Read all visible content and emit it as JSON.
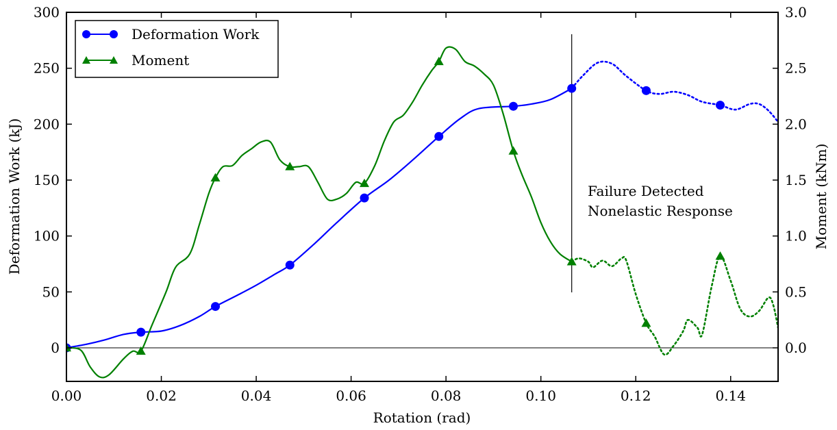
{
  "chart_data": {
    "type": "line",
    "xlabel": "Rotation (rad)",
    "ylabel_left": "Deformation Work (kJ)",
    "ylabel_right": "Moment (kNm)",
    "xlim": [
      0.0,
      0.15
    ],
    "ylim_left": [
      -30,
      300
    ],
    "ylim_right": [
      -0.3,
      3.0
    ],
    "x_ticks": [
      0.0,
      0.02,
      0.04,
      0.06,
      0.08,
      0.1,
      0.12,
      0.14
    ],
    "x_tick_labels": [
      "0.00",
      "0.02",
      "0.04",
      "0.06",
      "0.08",
      "0.10",
      "0.12",
      "0.14"
    ],
    "y_left_ticks": [
      0,
      50,
      100,
      150,
      200,
      250,
      300
    ],
    "y_left_tick_labels": [
      "0",
      "50",
      "100",
      "150",
      "200",
      "250",
      "300"
    ],
    "y_right_ticks": [
      0.0,
      0.5,
      1.0,
      1.5,
      2.0,
      2.5,
      3.0
    ],
    "y_right_tick_labels": [
      "0.0",
      "0.5",
      "1.0",
      "1.5",
      "2.0",
      "2.5",
      "3.0"
    ],
    "grid": false,
    "legend_position": "top-left",
    "failure_x": 0.1065,
    "annotation_lines": [
      "Failure Detected",
      "Nonelastic Response"
    ],
    "series": [
      {
        "name": "Deformation Work",
        "axis": "left",
        "color": "#0000ff",
        "marker": "circle",
        "markers": [
          [
            0.0,
            0
          ],
          [
            0.0157,
            14
          ],
          [
            0.0314,
            37
          ],
          [
            0.0471,
            74
          ],
          [
            0.0628,
            134
          ],
          [
            0.0785,
            189
          ],
          [
            0.0942,
            216
          ],
          [
            0.1065,
            232
          ],
          [
            0.1222,
            230
          ],
          [
            0.1378,
            217
          ]
        ],
        "curve_solid": [
          [
            0.0,
            0
          ],
          [
            0.004,
            3
          ],
          [
            0.008,
            7
          ],
          [
            0.012,
            12
          ],
          [
            0.0157,
            14
          ],
          [
            0.02,
            15
          ],
          [
            0.024,
            20
          ],
          [
            0.028,
            28
          ],
          [
            0.0314,
            37
          ],
          [
            0.036,
            47
          ],
          [
            0.04,
            56
          ],
          [
            0.044,
            66
          ],
          [
            0.0471,
            74
          ],
          [
            0.052,
            92
          ],
          [
            0.057,
            112
          ],
          [
            0.0628,
            134
          ],
          [
            0.068,
            150
          ],
          [
            0.073,
            168
          ],
          [
            0.0785,
            189
          ],
          [
            0.083,
            205
          ],
          [
            0.087,
            214
          ],
          [
            0.0942,
            216
          ],
          [
            0.098,
            218
          ],
          [
            0.102,
            222
          ],
          [
            0.1065,
            232
          ]
        ],
        "curve_dotted": [
          [
            0.1065,
            232
          ],
          [
            0.109,
            244
          ],
          [
            0.112,
            255
          ],
          [
            0.115,
            254
          ],
          [
            0.118,
            243
          ],
          [
            0.1222,
            230
          ],
          [
            0.125,
            227
          ],
          [
            0.128,
            229
          ],
          [
            0.131,
            226
          ],
          [
            0.134,
            220
          ],
          [
            0.1378,
            217
          ],
          [
            0.141,
            213
          ],
          [
            0.144,
            218
          ],
          [
            0.146,
            218
          ],
          [
            0.148,
            212
          ],
          [
            0.15,
            202
          ]
        ]
      },
      {
        "name": "Moment",
        "axis": "right",
        "color": "#008000",
        "marker": "triangle",
        "markers": [
          [
            0.0,
            0.0
          ],
          [
            0.0157,
            -0.03
          ],
          [
            0.0314,
            1.52
          ],
          [
            0.0471,
            1.62
          ],
          [
            0.0628,
            1.47
          ],
          [
            0.0785,
            2.56
          ],
          [
            0.0942,
            1.76
          ],
          [
            0.1065,
            0.77
          ],
          [
            0.1222,
            0.22
          ],
          [
            0.1378,
            0.82
          ]
        ],
        "curve_solid": [
          [
            0.0,
            0.0
          ],
          [
            0.003,
            -0.02
          ],
          [
            0.005,
            -0.17
          ],
          [
            0.007,
            -0.26
          ],
          [
            0.009,
            -0.24
          ],
          [
            0.012,
            -0.1
          ],
          [
            0.014,
            -0.03
          ],
          [
            0.0157,
            -0.03
          ],
          [
            0.018,
            0.2
          ],
          [
            0.021,
            0.5
          ],
          [
            0.023,
            0.72
          ],
          [
            0.026,
            0.84
          ],
          [
            0.028,
            1.1
          ],
          [
            0.03,
            1.38
          ],
          [
            0.0314,
            1.52
          ],
          [
            0.033,
            1.62
          ],
          [
            0.035,
            1.63
          ],
          [
            0.037,
            1.72
          ],
          [
            0.039,
            1.78
          ],
          [
            0.041,
            1.84
          ],
          [
            0.043,
            1.84
          ],
          [
            0.045,
            1.68
          ],
          [
            0.0471,
            1.62
          ],
          [
            0.049,
            1.62
          ],
          [
            0.051,
            1.62
          ],
          [
            0.053,
            1.48
          ],
          [
            0.055,
            1.33
          ],
          [
            0.057,
            1.33
          ],
          [
            0.059,
            1.38
          ],
          [
            0.061,
            1.48
          ],
          [
            0.0628,
            1.47
          ],
          [
            0.065,
            1.63
          ],
          [
            0.067,
            1.85
          ],
          [
            0.069,
            2.02
          ],
          [
            0.071,
            2.08
          ],
          [
            0.073,
            2.2
          ],
          [
            0.075,
            2.35
          ],
          [
            0.077,
            2.48
          ],
          [
            0.0785,
            2.56
          ],
          [
            0.08,
            2.68
          ],
          [
            0.082,
            2.67
          ],
          [
            0.084,
            2.56
          ],
          [
            0.086,
            2.52
          ],
          [
            0.088,
            2.45
          ],
          [
            0.09,
            2.35
          ],
          [
            0.092,
            2.1
          ],
          [
            0.0942,
            1.76
          ],
          [
            0.096,
            1.55
          ],
          [
            0.098,
            1.35
          ],
          [
            0.1,
            1.12
          ],
          [
            0.102,
            0.95
          ],
          [
            0.104,
            0.84
          ],
          [
            0.1065,
            0.77
          ]
        ],
        "curve_dotted": [
          [
            0.1065,
            0.77
          ],
          [
            0.108,
            0.8
          ],
          [
            0.11,
            0.77
          ],
          [
            0.111,
            0.72
          ],
          [
            0.113,
            0.78
          ],
          [
            0.115,
            0.73
          ],
          [
            0.117,
            0.8
          ],
          [
            0.118,
            0.78
          ],
          [
            0.12,
            0.48
          ],
          [
            0.1222,
            0.22
          ],
          [
            0.124,
            0.1
          ],
          [
            0.126,
            -0.06
          ],
          [
            0.128,
            0.02
          ],
          [
            0.13,
            0.15
          ],
          [
            0.131,
            0.25
          ],
          [
            0.133,
            0.18
          ],
          [
            0.134,
            0.12
          ],
          [
            0.136,
            0.55
          ],
          [
            0.1378,
            0.82
          ],
          [
            0.14,
            0.6
          ],
          [
            0.142,
            0.35
          ],
          [
            0.144,
            0.28
          ],
          [
            0.146,
            0.33
          ],
          [
            0.148,
            0.45
          ],
          [
            0.149,
            0.38
          ],
          [
            0.15,
            0.18
          ]
        ]
      }
    ]
  }
}
